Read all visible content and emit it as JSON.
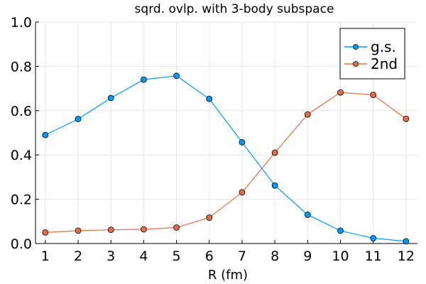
{
  "chart_data": {
    "type": "line",
    "title": "sqrd. ovlp. with 3-body subspace",
    "xlabel": "R (fm)",
    "ylabel": "",
    "x": [
      1,
      2,
      3,
      4,
      5,
      6,
      7,
      8,
      9,
      10,
      11,
      12
    ],
    "xlim": [
      0.7,
      12.35
    ],
    "ylim": [
      0,
      1
    ],
    "xticks": [
      "1",
      "2",
      "3",
      "4",
      "5",
      "6",
      "7",
      "8",
      "9",
      "10",
      "11",
      "12"
    ],
    "yticks": [
      "0.0",
      "0.2",
      "0.4",
      "0.6",
      "0.8",
      "1.0"
    ],
    "grid": true,
    "legend_position": "top-right",
    "series": [
      {
        "name": "g.s.",
        "color": "#009AFA",
        "values": [
          0.49,
          0.562,
          0.657,
          0.74,
          0.757,
          0.653,
          0.457,
          0.262,
          0.13,
          0.058,
          0.024,
          0.01
        ]
      },
      {
        "name": "2nd",
        "color": "#E26F46",
        "values": [
          0.05,
          0.058,
          0.062,
          0.064,
          0.072,
          0.117,
          0.231,
          0.41,
          0.583,
          0.682,
          0.671,
          0.563
        ]
      }
    ]
  }
}
